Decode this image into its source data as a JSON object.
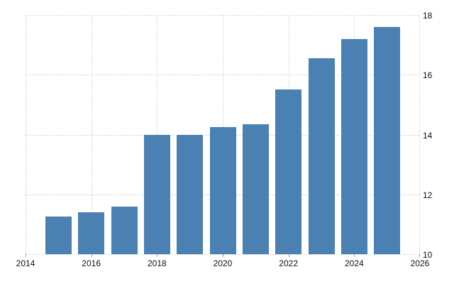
{
  "chart_data": {
    "type": "bar",
    "title": "",
    "categories": [
      2015,
      2016,
      2017,
      2018,
      2019,
      2020,
      2021,
      2022,
      2023,
      2024,
      2025
    ],
    "values": [
      11.25,
      11.4,
      11.6,
      14.0,
      14.0,
      14.25,
      14.35,
      15.5,
      16.55,
      17.2,
      17.6
    ],
    "series_name": "value",
    "xlabel": "",
    "ylabel": "",
    "xlim": [
      2014,
      2026
    ],
    "ylim": [
      10,
      18
    ],
    "x_tick_labels": [
      "2014",
      "2016",
      "2018",
      "2020",
      "2022",
      "2024",
      "2026"
    ],
    "x_tick_values": [
      2014,
      2016,
      2018,
      2020,
      2022,
      2024,
      2026
    ],
    "y_tick_labels": [
      "10",
      "12",
      "14",
      "16",
      "18"
    ],
    "y_tick_values": [
      10,
      12,
      14,
      16,
      18
    ],
    "grid": "dotted, horizontal and vertical, plus dotted plot border",
    "legend_position": "none",
    "colors": {
      "bar_fill": "#4a80b2",
      "gridline": "#cfcfcf",
      "tick_mark": "#999999",
      "axis_text": "#111111",
      "background": "#ffffff"
    }
  }
}
